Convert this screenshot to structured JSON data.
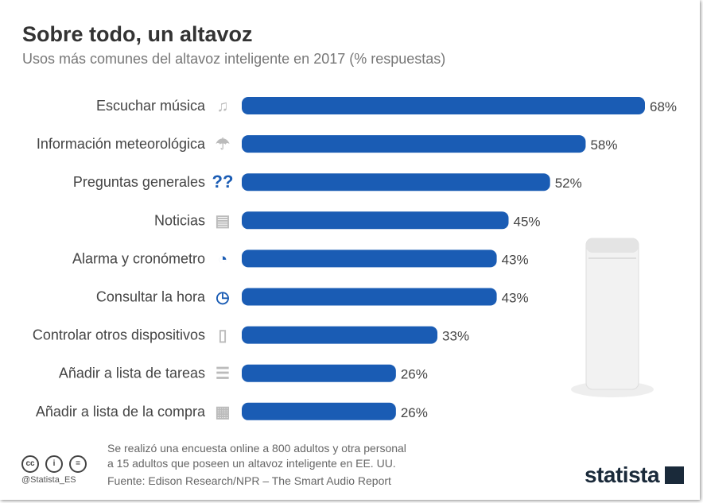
{
  "title": "Sobre todo, un altavoz",
  "subtitle": "Usos más comunes del altavoz inteligente en 2017 (% respuestas)",
  "chart_data": {
    "type": "bar",
    "orientation": "horizontal",
    "categories": [
      "Escuchar música",
      "Información meteorológica",
      "Preguntas generales",
      "Noticias",
      "Alarma y cronómetro",
      "Consultar la hora",
      "Controlar otros dispositivos",
      "Añadir a lista de tareas",
      "Añadir a lista de la compra"
    ],
    "values": [
      68,
      58,
      52,
      45,
      43,
      43,
      33,
      26,
      26
    ],
    "labels": [
      "68%",
      "58%",
      "52%",
      "45%",
      "43%",
      "43%",
      "33%",
      "26%",
      "26%"
    ],
    "icons": [
      "music-notes-icon",
      "weather-icon",
      "question-marks-icon",
      "newspaper-icon",
      "stopwatch-icon",
      "clock-icon",
      "remote-control-icon",
      "task-list-icon",
      "shopping-list-icon"
    ],
    "xlim": [
      0,
      68
    ],
    "grid": false,
    "bar_color": "#1a5cb4"
  },
  "footer": {
    "note_line1": "Se realizó una encuesta online a 800 adultos y otra personal",
    "note_line2": "a 15 adultos que poseen un altavoz inteligente en EE. UU.",
    "source": "Fuente:  Edison Research/NPR – The Smart Audio Report",
    "handle": "@Statista_ES",
    "logo": "statista"
  }
}
